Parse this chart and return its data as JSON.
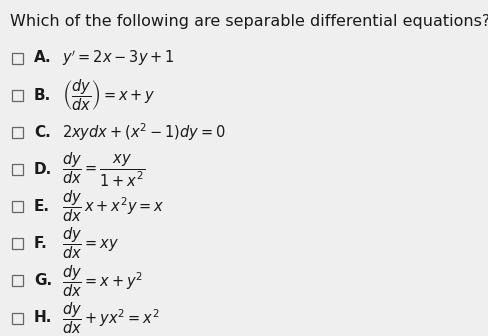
{
  "title": "Which of the following are separable differential equations?",
  "title_fontsize": 11.5,
  "title_color": "#1a1a1a",
  "background_color": "#efefef",
  "checkbox_color": "#666666",
  "label_color": "#1a1a1a",
  "items": [
    {
      "label": "A.",
      "eq": "$y' = 2x - 3y + 1$"
    },
    {
      "label": "B.",
      "eq": "$\\left(\\dfrac{dy}{dx}\\right) = x + y$"
    },
    {
      "label": "C.",
      "eq": "$2xydx + (x^2 - 1)dy = 0$"
    },
    {
      "label": "D.",
      "eq": "$\\dfrac{dy}{dx} = \\dfrac{xy}{1+x^2}$"
    },
    {
      "label": "E.",
      "eq": "$\\dfrac{dy}{dx}\\,x + x^2y = x$"
    },
    {
      "label": "F.",
      "eq": "$\\dfrac{dy}{dx} = xy$"
    },
    {
      "label": "G.",
      "eq": "$\\dfrac{dy}{dx} = x + y^2$"
    },
    {
      "label": "H.",
      "eq": "$\\dfrac{dy}{dx} + yx^2 = x^2$"
    }
  ],
  "item_fontsize": 10.5,
  "fig_width": 4.89,
  "fig_height": 3.36,
  "dpi": 100
}
